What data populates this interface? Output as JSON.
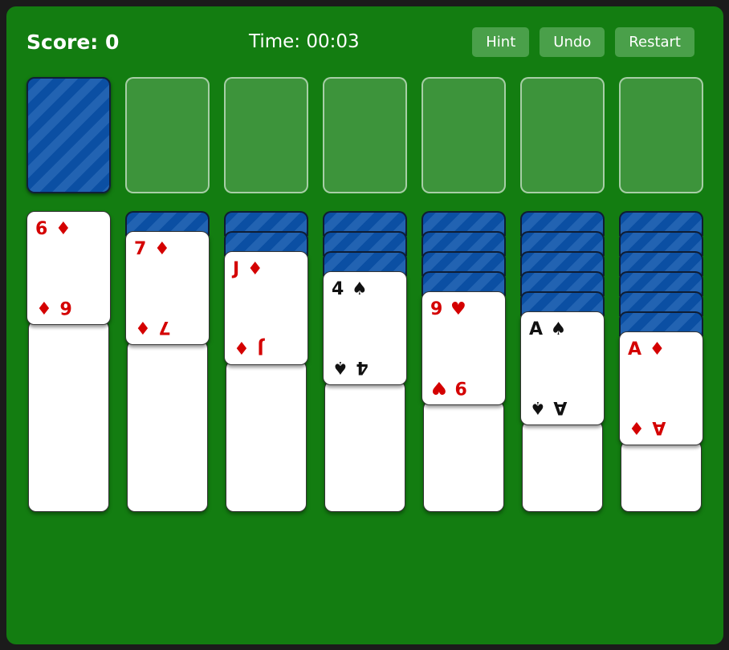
{
  "header": {
    "score": "Score: 0",
    "time": "Time: 00:03",
    "buttons": [
      {
        "label": "Hint"
      },
      {
        "label": "Undo"
      },
      {
        "label": "Restart"
      }
    ]
  },
  "top_row": {
    "stock": {
      "face_down": true
    },
    "empty_slot_count": 6
  },
  "tableau": {
    "columns": [
      {
        "face_down_count": 0,
        "face_up_card": {
          "rank": "6",
          "suit": "♦",
          "suit_name": "diamonds",
          "color": "red",
          "label": "6 ♦"
        }
      },
      {
        "face_down_count": 1,
        "face_up_card": {
          "rank": "7",
          "suit": "♦",
          "suit_name": "diamonds",
          "color": "red",
          "label": "7 ♦"
        }
      },
      {
        "face_down_count": 2,
        "face_up_card": {
          "rank": "J",
          "suit": "♦",
          "suit_name": "diamonds",
          "color": "red",
          "label": "J ♦"
        }
      },
      {
        "face_down_count": 3,
        "face_up_card": {
          "rank": "4",
          "suit": "♠",
          "suit_name": "spades",
          "color": "black",
          "label": "4 ♠"
        }
      },
      {
        "face_down_count": 4,
        "face_up_card": {
          "rank": "9",
          "suit": "♥",
          "suit_name": "hearts",
          "color": "red",
          "label": "9 ♥"
        }
      },
      {
        "face_down_count": 5,
        "face_up_card": {
          "rank": "A",
          "suit": "♠",
          "suit_name": "spades",
          "color": "black",
          "label": "A ♠"
        }
      },
      {
        "face_down_count": 6,
        "face_up_card": {
          "rank": "A",
          "suit": "♦",
          "suit_name": "diamonds",
          "color": "red",
          "label": "A ♦"
        }
      }
    ]
  },
  "colors": {
    "frame_bg": "#1b1b1b",
    "felt": "#137d11",
    "button_green": "#4aa04a",
    "card_face": "#ffffff",
    "card_red": "#d40000",
    "card_black": "#111111",
    "back_dark": "#0b4fa3",
    "back_light": "#2263b2",
    "slot_fill": "rgba(255,255,255,0.18)",
    "slot_border": "rgba(255,255,255,0.55)"
  }
}
